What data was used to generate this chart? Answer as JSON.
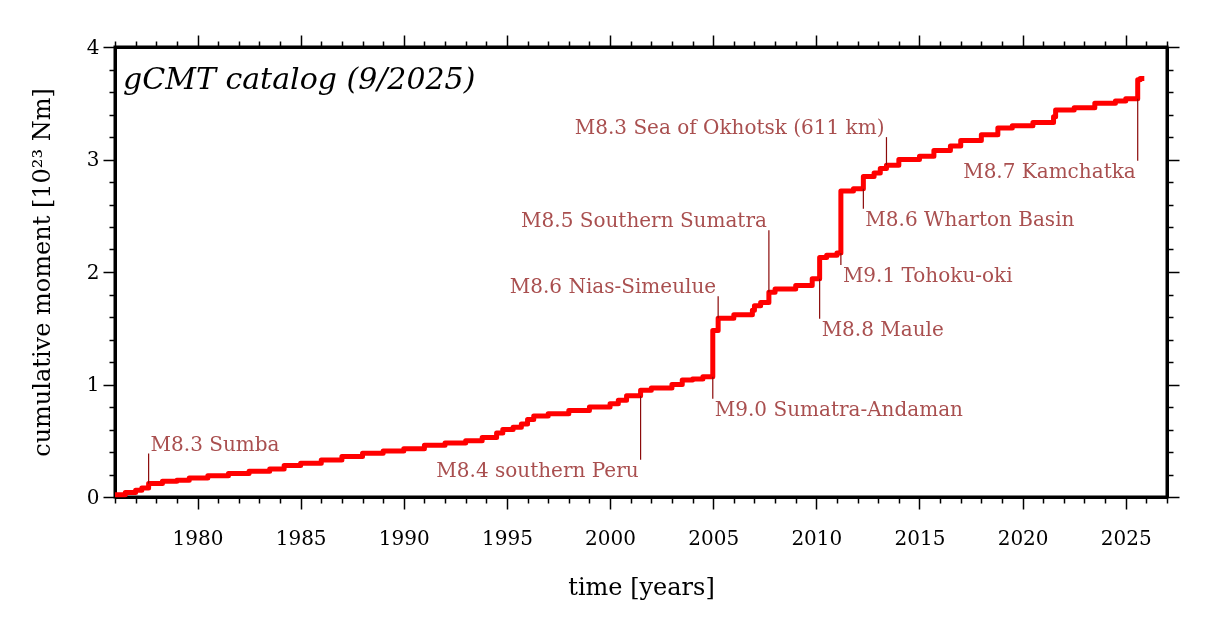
{
  "chart_data": {
    "type": "step",
    "title": "gCMT catalog (9/2025)",
    "xlabel": "time [years]",
    "ylabel": "cumulative moment [10²³ Nm]",
    "x": [
      1976.0,
      1976.5,
      1977.0,
      1977.3,
      1977.63,
      1978.3,
      1979.0,
      1979.6,
      1980.5,
      1981.5,
      1982.5,
      1983.5,
      1984.2,
      1985.0,
      1986.0,
      1987.0,
      1988.0,
      1989.0,
      1990.0,
      1991.0,
      1992.0,
      1993.0,
      1993.8,
      1994.5,
      1994.8,
      1995.3,
      1995.7,
      1996.0,
      1996.3,
      1997.0,
      1998.0,
      1999.0,
      2000.0,
      2000.4,
      2000.8,
      2001.48,
      2002.0,
      2003.0,
      2003.5,
      2004.0,
      2004.5,
      2004.98,
      2005.24,
      2006.0,
      2006.9,
      2007.0,
      2007.3,
      2007.7,
      2008.0,
      2009.0,
      2009.8,
      2010.16,
      2010.5,
      2011.0,
      2011.19,
      2011.8,
      2012.28,
      2012.8,
      2013.1,
      2013.4,
      2014.0,
      2015.0,
      2015.7,
      2016.5,
      2017.0,
      2018.0,
      2018.8,
      2019.5,
      2020.5,
      2021.5,
      2021.6,
      2022.5,
      2023.5,
      2024.5,
      2025.0,
      2025.58,
      2025.7,
      2025.9
    ],
    "series": [
      {
        "color": "#ff0000",
        "values": [
          0.02,
          0.04,
          0.06,
          0.08,
          0.12,
          0.14,
          0.15,
          0.17,
          0.19,
          0.21,
          0.23,
          0.25,
          0.28,
          0.3,
          0.33,
          0.36,
          0.39,
          0.41,
          0.43,
          0.46,
          0.48,
          0.5,
          0.53,
          0.57,
          0.6,
          0.62,
          0.65,
          0.69,
          0.72,
          0.74,
          0.77,
          0.8,
          0.83,
          0.86,
          0.9,
          0.95,
          0.97,
          1.0,
          1.04,
          1.05,
          1.07,
          1.48,
          1.59,
          1.62,
          1.66,
          1.7,
          1.73,
          1.82,
          1.85,
          1.88,
          1.94,
          2.13,
          2.15,
          2.17,
          2.72,
          2.74,
          2.85,
          2.88,
          2.92,
          2.95,
          3.0,
          3.03,
          3.08,
          3.12,
          3.17,
          3.22,
          3.28,
          3.3,
          3.33,
          3.38,
          3.44,
          3.46,
          3.5,
          3.52,
          3.54,
          3.71,
          3.72,
          3.72
        ]
      }
    ],
    "xlim": [
      1976,
      2027
    ],
    "ylim": [
      0,
      4
    ],
    "xticks": [
      {
        "value": 1976,
        "label": null
      },
      {
        "value": 1977,
        "label": null
      },
      {
        "value": 1978,
        "label": null
      },
      {
        "value": 1979,
        "label": null
      },
      1980,
      {
        "value": 1981,
        "label": null
      },
      {
        "value": 1982,
        "label": null
      },
      {
        "value": 1983,
        "label": null
      },
      {
        "value": 1984,
        "label": null
      },
      1985,
      {
        "value": 1986,
        "label": null
      },
      {
        "value": 1987,
        "label": null
      },
      {
        "value": 1988,
        "label": null
      },
      {
        "value": 1989,
        "label": null
      },
      1990,
      {
        "value": 1991,
        "label": null
      },
      {
        "value": 1992,
        "label": null
      },
      {
        "value": 1993,
        "label": null
      },
      {
        "value": 1994,
        "label": null
      },
      1995,
      {
        "value": 1996,
        "label": null
      },
      {
        "value": 1997,
        "label": null
      },
      {
        "value": 1998,
        "label": null
      },
      {
        "value": 1999,
        "label": null
      },
      2000,
      {
        "value": 2001,
        "label": null
      },
      {
        "value": 2002,
        "label": null
      },
      {
        "value": 2003,
        "label": null
      },
      {
        "value": 2004,
        "label": null
      },
      2005,
      {
        "value": 2006,
        "label": null
      },
      {
        "value": 2007,
        "label": null
      },
      {
        "value": 2008,
        "label": null
      },
      {
        "value": 2009,
        "label": null
      },
      2010,
      {
        "value": 2011,
        "label": null
      },
      {
        "value": 2012,
        "label": null
      },
      {
        "value": 2013,
        "label": null
      },
      {
        "value": 2014,
        "label": null
      },
      2015,
      {
        "value": 2016,
        "label": null
      },
      {
        "value": 2017,
        "label": null
      },
      {
        "value": 2018,
        "label": null
      },
      {
        "value": 2019,
        "label": null
      },
      2020,
      {
        "value": 2021,
        "label": null
      },
      {
        "value": 2022,
        "label": null
      },
      {
        "value": 2023,
        "label": null
      },
      {
        "value": 2024,
        "label": null
      },
      2025,
      {
        "value": 2026,
        "label": null
      },
      {
        "value": 2027,
        "label": null
      }
    ],
    "yticks": [
      0,
      {
        "value": 0.2,
        "label": null
      },
      {
        "value": 0.4,
        "label": null
      },
      {
        "value": 0.6,
        "label": null
      },
      {
        "value": 0.8,
        "label": null
      },
      1,
      {
        "value": 1.2,
        "label": null
      },
      {
        "value": 1.4,
        "label": null
      },
      {
        "value": 1.6,
        "label": null
      },
      {
        "value": 1.8,
        "label": null
      },
      2,
      {
        "value": 2.2,
        "label": null
      },
      {
        "value": 2.4,
        "label": null
      },
      {
        "value": 2.6,
        "label": null
      },
      {
        "value": 2.8,
        "label": null
      },
      3,
      {
        "value": 3.2,
        "label": null
      },
      {
        "value": 3.4,
        "label": null
      },
      {
        "value": 3.6,
        "label": null
      },
      {
        "value": 3.8,
        "label": null
      },
      4
    ],
    "annotations": [
      {
        "text": "M8.3 Sumba",
        "x": 1977.63,
        "y": 0.12
      },
      {
        "text": "M8.4 southern Peru",
        "x": 2001.48,
        "y": 0.9
      },
      {
        "text": "M9.0 Sumatra-Andaman",
        "x": 2004.98,
        "y": 1.07
      },
      {
        "text": "M8.6 Nias-Simeulue",
        "x": 2005.24,
        "y": 1.59
      },
      {
        "text": "M8.5 Southern Sumatra",
        "x": 2007.7,
        "y": 1.82
      },
      {
        "text": "M8.8 Maule",
        "x": 2010.16,
        "y": 1.94
      },
      {
        "text": "M9.1 Tohoku-oki",
        "x": 2011.19,
        "y": 2.17
      },
      {
        "text": "M8.6 Wharton Basin",
        "x": 2012.28,
        "y": 2.74
      },
      {
        "text": "M8.3 Sea of Okhotsk (611 km)",
        "x": 2013.4,
        "y": 2.95
      },
      {
        "text": "M8.7 Kamchatka",
        "x": 2025.58,
        "y": 3.54
      }
    ],
    "line_style": "solid"
  }
}
